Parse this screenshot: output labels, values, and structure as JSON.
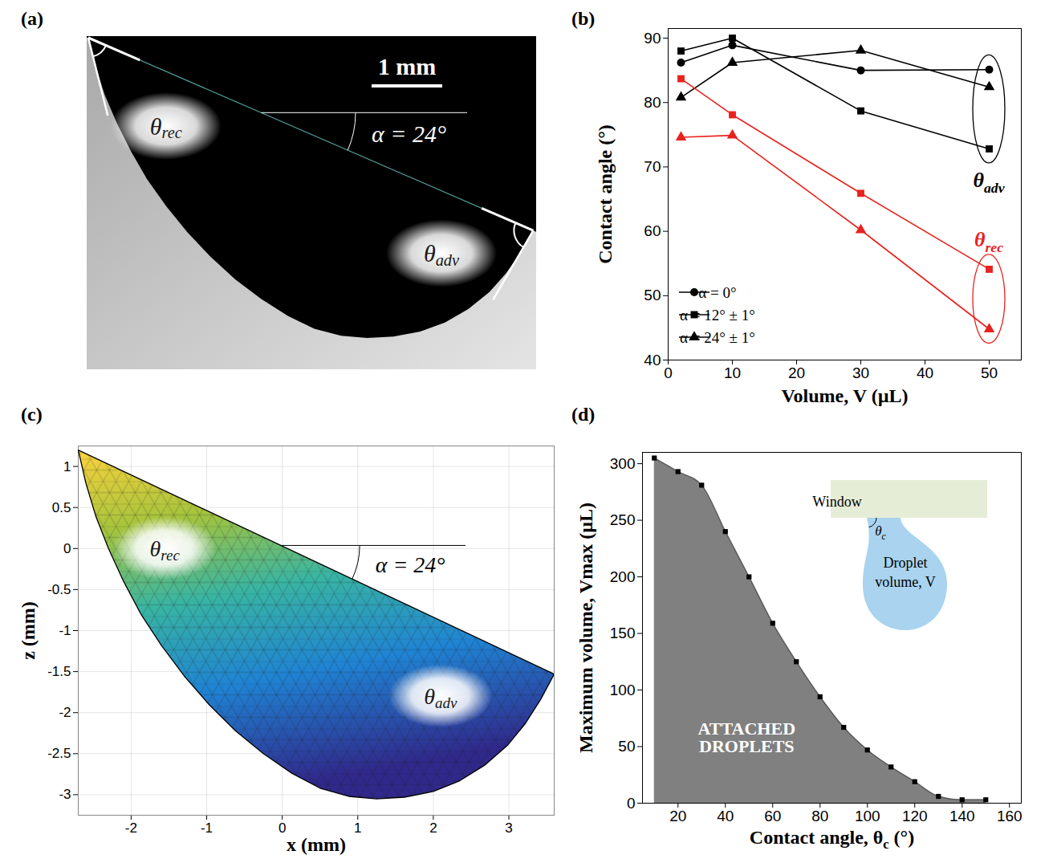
{
  "chart_data": [
    {
      "panel": "(a)",
      "type": "image",
      "scale_bar": {
        "value": 1,
        "label": "1 mm"
      },
      "annotations": [
        {
          "text": "θrec",
          "x": -1.6,
          "y": -0.05
        },
        {
          "text": "α = 24°",
          "x": 1.84,
          "y": -0.15
        },
        {
          "text": "θadv",
          "x": 2.3,
          "y": -1.85
        }
      ]
    },
    {
      "panel": "(b)",
      "type": "line",
      "x_label": "Volume, V (µL)",
      "y_label": "Contact angle (°)",
      "x": [
        2,
        10,
        30,
        50
      ],
      "xlim": [
        0,
        55
      ],
      "ylim": [
        40,
        91.5
      ],
      "xticks": [
        0,
        10,
        20,
        30,
        40,
        50
      ],
      "yticks": [
        40,
        50,
        60,
        70,
        80,
        90
      ],
      "legend": "bottom-left",
      "groups": [
        {
          "name": "θadv",
          "color": "#000000"
        },
        {
          "name": "θrec",
          "color": "#e8231f"
        }
      ],
      "series": [
        {
          "name": "α = 0°",
          "group": "θadv",
          "color": "#000000",
          "marker": "circle",
          "values": [
            86.2,
            88.9,
            85.0,
            85.1
          ]
        },
        {
          "name": "α = 12° ± 1°",
          "group": "θadv",
          "color": "#000000",
          "marker": "square",
          "values": [
            88.0,
            90.0,
            78.7,
            72.8
          ]
        },
        {
          "name": "α = 24° ± 1°",
          "group": "θadv",
          "color": "#000000",
          "marker": "triangle",
          "values": [
            80.8,
            86.2,
            88.1,
            82.4
          ]
        },
        {
          "name": "α = 12° ± 1°",
          "group": "θrec",
          "color": "#e8231f",
          "marker": "square",
          "values": [
            83.7,
            78.1,
            65.9,
            54.1
          ]
        },
        {
          "name": "α = 24° ± 1°",
          "group": "θrec",
          "color": "#e8231f",
          "marker": "triangle",
          "values": [
            74.6,
            74.9,
            60.2,
            44.8
          ]
        }
      ]
    },
    {
      "panel": "(c)",
      "type": "mesh",
      "x_label": "x (mm)",
      "y_label": "z (mm)",
      "xlim": [
        -2.7,
        3.6
      ],
      "ylim": [
        -3.25,
        1.25
      ],
      "xticks": [
        -2,
        -1,
        0,
        1,
        2,
        3
      ],
      "yticks": [
        1,
        0.5,
        0,
        -0.5,
        -1,
        -1.5,
        -2,
        -2.5,
        -3
      ],
      "grid": true,
      "outline": {
        "x": [
          -2.7,
          -2.6,
          -2.47,
          -2.3,
          -2.1,
          -1.87,
          -1.6,
          -1.3,
          -0.97,
          -0.62,
          -0.25,
          0.13,
          0.5,
          0.88,
          1.25,
          1.62,
          2.0,
          2.35,
          2.68,
          2.98,
          3.22,
          3.42,
          3.6
        ],
        "z": [
          1.2,
          0.8,
          0.4,
          0.0,
          -0.4,
          -0.8,
          -1.18,
          -1.55,
          -1.9,
          -2.22,
          -2.5,
          -2.74,
          -2.92,
          -3.02,
          -3.05,
          -3.03,
          -2.96,
          -2.83,
          -2.64,
          -2.4,
          -2.13,
          -1.84,
          -1.53
        ]
      },
      "annotations": [
        {
          "text": "θrec",
          "x": -1.55,
          "y": 0.0
        },
        {
          "text": "α = 24°",
          "x": 1.7,
          "y": -0.2
        },
        {
          "text": "θadv",
          "x": 2.1,
          "y": -1.8
        }
      ]
    },
    {
      "panel": "(d)",
      "type": "area",
      "x_label": "Contact angle, θc (°)",
      "y_label": "Maximum volume, Vmax (µL)",
      "x": [
        10,
        20,
        30,
        40,
        50,
        60,
        70,
        80,
        90,
        100,
        110,
        120,
        130,
        140,
        150
      ],
      "values": [
        305,
        293,
        281,
        240,
        200,
        159,
        125,
        94,
        67,
        47,
        32,
        19,
        6,
        3,
        3
      ],
      "color": "#808080",
      "marker": "square",
      "xlim": [
        5,
        165
      ],
      "ylim": [
        0,
        310
      ],
      "xticks": [
        20,
        40,
        60,
        80,
        100,
        120,
        140,
        160
      ],
      "yticks": [
        0,
        50,
        100,
        150,
        200,
        250,
        300
      ],
      "annotations": [
        {
          "text": "ATTACHED DROPLETS",
          "x": 49,
          "y": 58
        }
      ],
      "inset": {
        "window": "Window",
        "angle": "θc",
        "droplet": [
          "Droplet",
          "volume, V"
        ]
      }
    }
  ]
}
